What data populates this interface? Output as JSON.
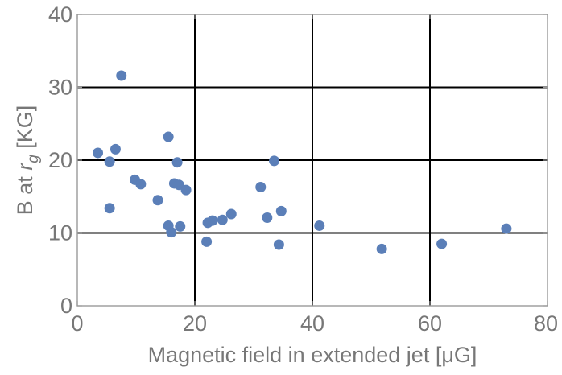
{
  "chart_data": {
    "type": "scatter",
    "title": "",
    "xlabel": "Magnetic field in extended jet [μG]",
    "ylabel_prefix": "B at ",
    "ylabel_italic": "r",
    "ylabel_subscript": "g",
    "ylabel_suffix": " [KG]",
    "xlim": [
      0,
      80
    ],
    "ylim": [
      0,
      40
    ],
    "x_ticks": [
      0,
      20,
      40,
      60,
      80
    ],
    "y_ticks": [
      0,
      10,
      20,
      30,
      40
    ],
    "x_gridlines": [
      20,
      40,
      60
    ],
    "y_gridlines": [
      10,
      20,
      30
    ],
    "grid": true,
    "point_color": "#5b7fb8",
    "grid_color": "#000000",
    "series": [
      {
        "points": [
          [
            3.5,
            21.0
          ],
          [
            5.5,
            19.8
          ],
          [
            6.5,
            21.5
          ],
          [
            7.5,
            31.6
          ],
          [
            5.5,
            13.4
          ],
          [
            9.8,
            17.3
          ],
          [
            10.8,
            16.7
          ],
          [
            13.7,
            14.5
          ],
          [
            15.5,
            23.2
          ],
          [
            15.5,
            11.0
          ],
          [
            16.0,
            10.1
          ],
          [
            16.5,
            16.8
          ],
          [
            17.0,
            19.7
          ],
          [
            17.3,
            16.6
          ],
          [
            17.5,
            10.9
          ],
          [
            18.5,
            15.9
          ],
          [
            22.0,
            8.8
          ],
          [
            22.2,
            11.4
          ],
          [
            23.0,
            11.7
          ],
          [
            24.7,
            11.8
          ],
          [
            26.2,
            12.6
          ],
          [
            31.2,
            16.3
          ],
          [
            32.3,
            12.1
          ],
          [
            33.5,
            19.9
          ],
          [
            34.3,
            8.4
          ],
          [
            34.7,
            13.0
          ],
          [
            41.2,
            11.0
          ],
          [
            51.8,
            7.8
          ],
          [
            62.0,
            8.5
          ],
          [
            73.0,
            10.6
          ]
        ]
      }
    ]
  }
}
